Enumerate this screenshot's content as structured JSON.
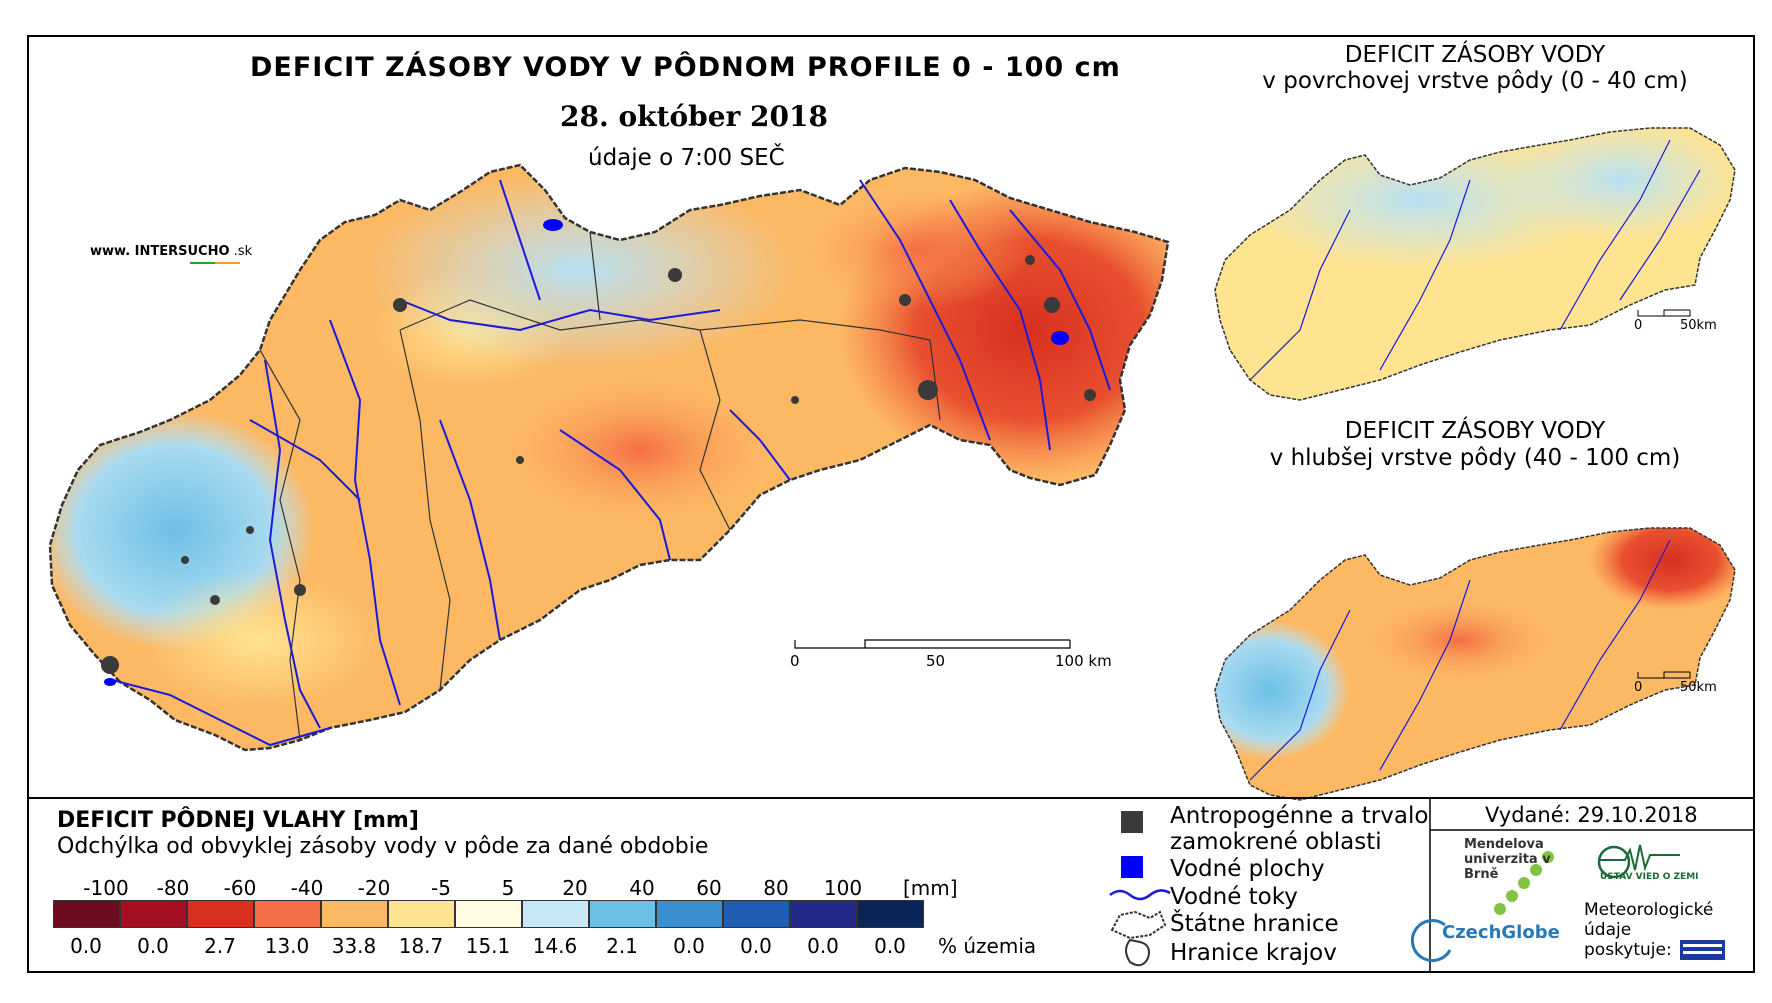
{
  "main_map": {
    "title": "DEFICIT ZÁSOBY VODY V PÔDNOM PROFILE 0 - 100 cm",
    "date": "28. október 2018",
    "time": "údaje o 7:00 SEČ",
    "website": {
      "prefix": "www. INTER",
      "brand": "SUCHO",
      "suffix": " .sk"
    },
    "scalebar": {
      "labels": [
        "0",
        "50",
        "100 km"
      ]
    }
  },
  "inset_top": {
    "title": "DEFICIT ZÁSOBY VODY",
    "subtitle": "v povrchovej vrstve pôdy (0 - 40 cm)",
    "scalebar": {
      "labels": [
        "0",
        "50km"
      ]
    }
  },
  "inset_bottom": {
    "title": "DEFICIT ZÁSOBY VODY",
    "subtitle": "v hlubšej vrstve pôdy (40 - 100 cm)",
    "scalebar": {
      "labels": [
        "0",
        "50km"
      ]
    }
  },
  "legend": {
    "title": "DEFICIT PÔDNEJ VLAHY [mm]",
    "subtitle": "Odchýlka od obvyklej zásoby vody v pôde za dané obdobie",
    "tick_labels": [
      "-100",
      "-80",
      "-60",
      "-40",
      "-20",
      "-5",
      "5",
      "20",
      "40",
      "60",
      "80",
      "100"
    ],
    "unit": "[mm]",
    "classes": [
      {
        "color": "#6e0a1e",
        "percent": "0.0"
      },
      {
        "color": "#a50f24",
        "percent": "0.0"
      },
      {
        "color": "#d7301f",
        "percent": "2.7"
      },
      {
        "color": "#f46d43",
        "percent": "13.0"
      },
      {
        "color": "#fdb863",
        "percent": "33.8"
      },
      {
        "color": "#fee391",
        "percent": "18.7"
      },
      {
        "color": "#fffbe1",
        "percent": "15.1"
      },
      {
        "color": "#c6e7f5",
        "percent": "14.6"
      },
      {
        "color": "#6cc0e5",
        "percent": "2.1"
      },
      {
        "color": "#3a8fd0",
        "percent": "0.0"
      },
      {
        "color": "#1f5db4",
        "percent": "0.0"
      },
      {
        "color": "#232a8c",
        "percent": "0.0"
      },
      {
        "color": "#0b2559",
        "percent": "0.0"
      }
    ],
    "percent_unit": "% územia"
  },
  "symbols": {
    "anthropogenic_1": "Antropogénne a trvalo",
    "anthropogenic_2": "zamokrené oblasti",
    "water_bodies": "Vodné plochy",
    "rivers": "Vodné toky",
    "state_border": "Štátne hranice",
    "region_border": "Hranice krajov"
  },
  "info": {
    "issued": "Vydané: 29.10.2018",
    "mendel": "Mendelova univerzita v Brně",
    "czechglobe": "CzechGlobe",
    "uvz": "ÚSTAV VIED O ZEMI",
    "meteo": "Meteorologické údaje poskytuje:"
  },
  "colors": {
    "river": "#1a1adf",
    "anthropogenic": "#3a3a3a",
    "water": "#0000ff"
  }
}
